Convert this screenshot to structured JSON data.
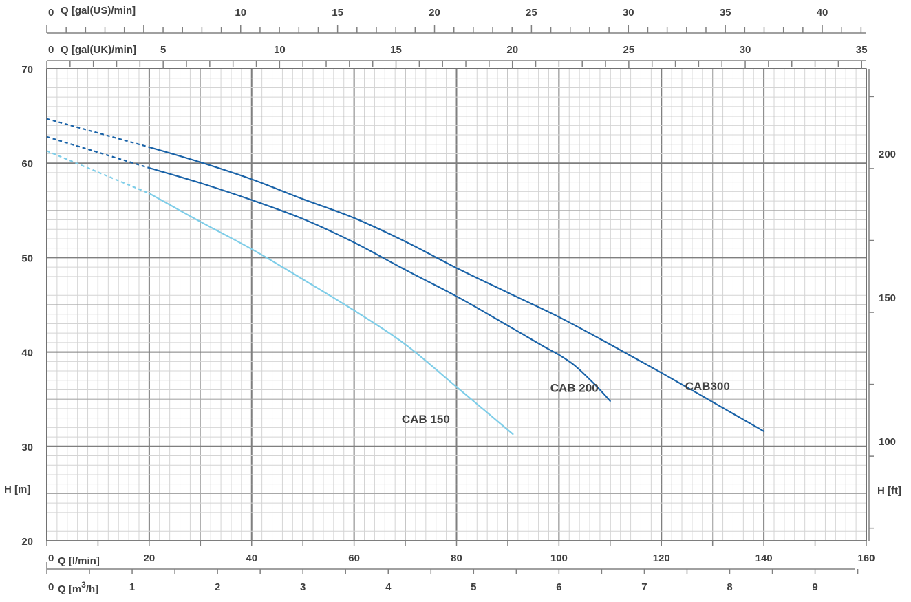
{
  "chart_data": {
    "type": "line",
    "x_axis_main": {
      "label": "Q [l/min]",
      "range": [
        0,
        160
      ],
      "ticks": [
        0,
        20,
        40,
        60,
        80,
        100,
        120,
        140,
        160
      ]
    },
    "x_axis_m3h": {
      "label_prefix": "Q [m",
      "label_sup": "3",
      "label_suffix": "/h]",
      "range": [
        0,
        9.6
      ],
      "ticks": [
        0,
        1,
        2,
        3,
        4,
        5,
        6,
        7,
        8,
        9
      ]
    },
    "x_axis_gal_us": {
      "label": "Q [gal(US)/min]",
      "range": [
        0,
        42.27
      ],
      "ticks": [
        0,
        10,
        15,
        20,
        25,
        30,
        35,
        40
      ]
    },
    "x_axis_gal_uk": {
      "label": "Q [gal(UK)/min]",
      "range": [
        0,
        35.2
      ],
      "ticks": [
        0,
        5,
        10,
        15,
        20,
        25,
        30,
        35
      ]
    },
    "y_axis_left": {
      "label": "H [m]",
      "range": [
        20,
        70
      ],
      "ticks": [
        20,
        30,
        40,
        50,
        60,
        70
      ]
    },
    "y_axis_right": {
      "label": "H [ft]",
      "ticks": [
        100,
        150,
        200
      ]
    },
    "grid": true,
    "series": [
      {
        "name": "CAB300",
        "color": "#1a63a8",
        "dashed_points": [
          [
            0,
            64.7
          ],
          [
            20,
            61.7
          ]
        ],
        "points": [
          [
            20,
            61.7
          ],
          [
            30,
            60.1
          ],
          [
            40,
            58.3
          ],
          [
            50,
            56.2
          ],
          [
            60,
            54.2
          ],
          [
            70,
            51.7
          ],
          [
            80,
            48.9
          ],
          [
            90,
            46.3
          ],
          [
            100,
            43.7
          ],
          [
            110,
            40.8
          ],
          [
            120,
            37.8
          ],
          [
            130,
            34.7
          ],
          [
            140,
            31.6
          ]
        ]
      },
      {
        "name": "CAB 200",
        "color": "#1a63a8",
        "dashed_points": [
          [
            0,
            62.8
          ],
          [
            20,
            59.5
          ]
        ],
        "points": [
          [
            20,
            59.5
          ],
          [
            30,
            57.9
          ],
          [
            40,
            56.1
          ],
          [
            50,
            54.1
          ],
          [
            60,
            51.6
          ],
          [
            70,
            48.7
          ],
          [
            80,
            45.9
          ],
          [
            90,
            42.8
          ],
          [
            97,
            40.6
          ],
          [
            100,
            39.7
          ],
          [
            103,
            38.6
          ],
          [
            106,
            37.1
          ],
          [
            108,
            36.0
          ],
          [
            110,
            34.8
          ]
        ]
      },
      {
        "name": "CAB 150",
        "color": "#7ecde8",
        "dashed_points": [
          [
            0,
            61.3
          ],
          [
            20,
            56.8
          ]
        ],
        "points": [
          [
            20,
            56.8
          ],
          [
            30,
            53.8
          ],
          [
            40,
            50.9
          ],
          [
            50,
            47.7
          ],
          [
            60,
            44.4
          ],
          [
            70,
            40.8
          ],
          [
            80,
            36.3
          ],
          [
            91,
            31.3
          ]
        ]
      }
    ],
    "labels": [
      {
        "text": "CAB300",
        "x": 129,
        "y": 36.4
      },
      {
        "text": "CAB 200",
        "x": 103,
        "y": 36.2
      },
      {
        "text": "CAB 150",
        "x": 74,
        "y": 32.9
      }
    ]
  }
}
